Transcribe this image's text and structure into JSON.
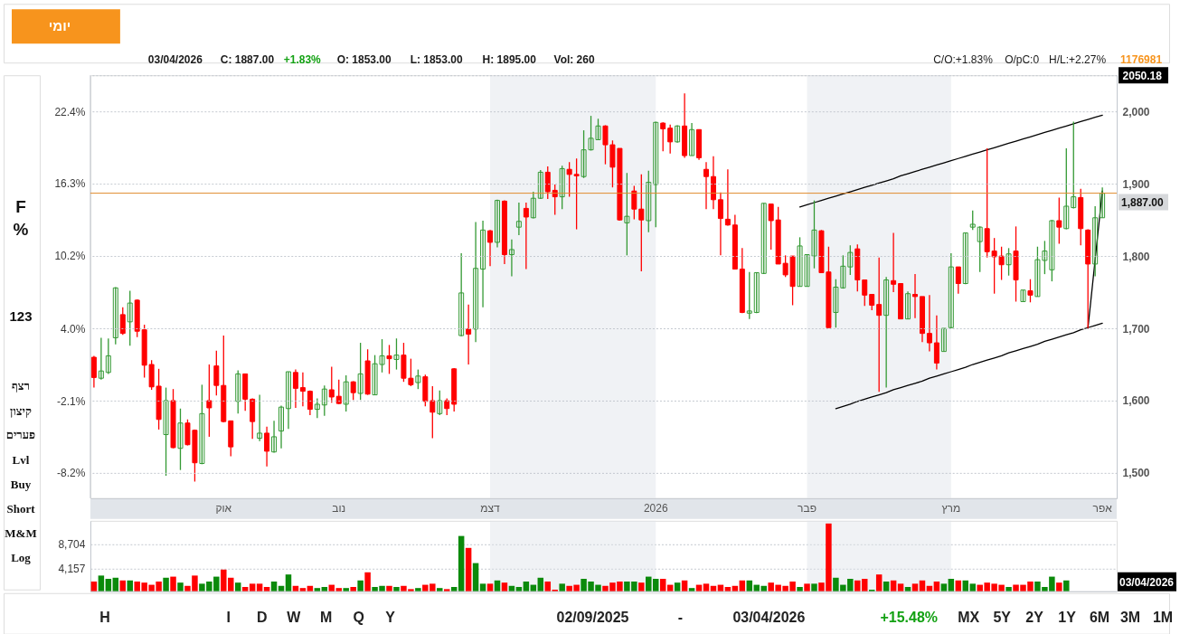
{
  "chart_data": [
    {
      "type": "candlestick",
      "title": "יומי",
      "categories": [
        null,
        null,
        null,
        null,
        null,
        null,
        null,
        null,
        null,
        null,
        null,
        null,
        null,
        null,
        null,
        null,
        null,
        null,
        "אוק",
        null,
        null,
        null,
        null,
        null,
        null,
        null,
        null,
        null,
        null,
        null,
        null,
        null,
        null,
        null,
        "נוב",
        null,
        null,
        null,
        null,
        null,
        null,
        null,
        null,
        null,
        null,
        null,
        null,
        null,
        null,
        null,
        null,
        null,
        null,
        null,
        null,
        "דצמ",
        null,
        null,
        null,
        null,
        null,
        null,
        null,
        null,
        null,
        null,
        null,
        null,
        null,
        null,
        null,
        null,
        null,
        null,
        null,
        null,
        null,
        null,
        "2026",
        null,
        null,
        null,
        null,
        null,
        null,
        null,
        null,
        null,
        null,
        null,
        null,
        null,
        null,
        null,
        null,
        null,
        null,
        null,
        null,
        "פבר",
        null,
        null,
        null,
        null,
        null,
        null,
        null,
        null,
        null,
        null,
        null,
        null,
        null,
        null,
        null,
        null,
        null,
        null,
        null,
        "מרץ",
        null,
        null,
        null,
        null,
        null,
        null,
        null,
        null,
        null,
        null,
        null,
        null,
        null,
        null,
        null,
        null,
        null,
        null,
        null,
        null,
        "אפר"
      ],
      "ohlc": [
        [
          1660,
          1662,
          1618,
          1632
        ],
        [
          1631,
          1687,
          1629,
          1641
        ],
        [
          1639,
          1686,
          1637,
          1662
        ],
        [
          1687,
          1757,
          1678,
          1756
        ],
        [
          1719,
          1729,
          1691,
          1693
        ],
        [
          1709,
          1752,
          1676,
          1735
        ],
        [
          1739,
          1740,
          1688,
          1696
        ],
        [
          1698,
          1705,
          1632,
          1649
        ],
        [
          1650,
          1656,
          1615,
          1619
        ],
        [
          1620,
          1644,
          1560,
          1574
        ],
        [
          1553,
          1618,
          1496,
          1600
        ],
        [
          1600,
          1616,
          1534,
          1535
        ],
        [
          1534,
          1589,
          1504,
          1569
        ],
        [
          1569,
          1574,
          1538,
          1539
        ],
        [
          1559,
          1560,
          1488,
          1514
        ],
        [
          1513,
          1622,
          1512,
          1582
        ],
        [
          1600,
          1650,
          1550,
          1590
        ],
        [
          1648,
          1669,
          1607,
          1621
        ],
        [
          1621,
          1690,
          1570,
          1571
        ],
        [
          1572,
          1572,
          1523,
          1536
        ],
        [
          1599,
          1642,
          1582,
          1637
        ],
        [
          1637,
          1637,
          1586,
          1602
        ],
        [
          1602,
          1603,
          1547,
          1571
        ],
        [
          1548,
          1608,
          1544,
          1555
        ],
        [
          1555,
          1564,
          1509,
          1530
        ],
        [
          1529,
          1572,
          1528,
          1550
        ],
        [
          1558,
          1593,
          1534,
          1591
        ],
        [
          1589,
          1640,
          1561,
          1640
        ],
        [
          1639,
          1643,
          1590,
          1617
        ],
        [
          1618,
          1639,
          1592,
          1613
        ],
        [
          1613,
          1614,
          1580,
          1588
        ],
        [
          1588,
          1603,
          1576,
          1595
        ],
        [
          1594,
          1621,
          1579,
          1616
        ],
        [
          1615,
          1647,
          1597,
          1605
        ],
        [
          1606,
          1629,
          1595,
          1596
        ],
        [
          1595,
          1635,
          1585,
          1626
        ],
        [
          1626,
          1627,
          1601,
          1611
        ],
        [
          1610,
          1680,
          1601,
          1637
        ],
        [
          1655,
          1671,
          1608,
          1609
        ],
        [
          1608,
          1663,
          1608,
          1651
        ],
        [
          1650,
          1685,
          1639,
          1662
        ],
        [
          1662,
          1677,
          1637,
          1658
        ],
        [
          1657,
          1686,
          1643,
          1663
        ],
        [
          1663,
          1680,
          1626,
          1631
        ],
        [
          1631,
          1658,
          1620,
          1622
        ],
        [
          1625,
          1643,
          1616,
          1634
        ],
        [
          1633,
          1636,
          1592,
          1599
        ],
        [
          1600,
          1620,
          1548,
          1584
        ],
        [
          1582,
          1614,
          1580,
          1600
        ],
        [
          1600,
          1603,
          1580,
          1589
        ],
        [
          1644,
          1645,
          1585,
          1595
        ],
        [
          1690,
          1804,
          1689,
          1749
        ],
        [
          1699,
          1733,
          1650,
          1692
        ],
        [
          1699,
          1847,
          1681,
          1783
        ],
        [
          1782,
          1849,
          1729,
          1836
        ],
        [
          1835,
          1836,
          1786,
          1819
        ],
        [
          1819,
          1878,
          1812,
          1877
        ],
        [
          1876,
          1877,
          1789,
          1802
        ],
        [
          1802,
          1823,
          1772,
          1809
        ],
        [
          1840,
          1874,
          1829,
          1848
        ],
        [
          1866,
          1874,
          1782,
          1854
        ],
        [
          1853,
          1889,
          1852,
          1880
        ],
        [
          1880,
          1919,
          1879,
          1916
        ],
        [
          1916,
          1924,
          1879,
          1889
        ],
        [
          1891,
          1899,
          1857,
          1882
        ],
        [
          1882,
          1925,
          1865,
          1921
        ],
        [
          1920,
          1930,
          1882,
          1913
        ],
        [
          1913,
          1935,
          1837,
          1911
        ],
        [
          1910,
          1974,
          1908,
          1947
        ],
        [
          1947,
          1994,
          1946,
          1963
        ],
        [
          1961,
          1990,
          1961,
          1980
        ],
        [
          1980,
          1981,
          1927,
          1954
        ],
        [
          1954,
          1960,
          1895,
          1923
        ],
        [
          1949,
          1949,
          1849,
          1850
        ],
        [
          1846,
          1915,
          1801,
          1855
        ],
        [
          1890,
          1897,
          1851,
          1865
        ],
        [
          1865,
          1913,
          1779,
          1850
        ],
        [
          1849,
          1918,
          1833,
          1902
        ],
        [
          1899,
          1986,
          1840,
          1985
        ],
        [
          1984,
          1985,
          1945,
          1976
        ],
        [
          1977,
          1982,
          1942,
          1958
        ],
        [
          1958,
          1981,
          1957,
          1980
        ],
        [
          1980,
          2025,
          1936,
          1939
        ],
        [
          1939,
          1984,
          1939,
          1975
        ],
        [
          1975,
          1975,
          1933,
          1936
        ],
        [
          1920,
          1930,
          1865,
          1910
        ],
        [
          1910,
          1938,
          1865,
          1878
        ],
        [
          1878,
          1888,
          1801,
          1852
        ],
        [
          1851,
          1920,
          1842,
          1843
        ],
        [
          1843,
          1857,
          1782,
          1782
        ],
        [
          1782,
          1811,
          1721,
          1722
        ],
        [
          1721,
          1778,
          1713,
          1724
        ],
        [
          1722,
          1777,
          1721,
          1777
        ],
        [
          1776,
          1873,
          1775,
          1873
        ],
        [
          1872,
          1872,
          1809,
          1849
        ],
        [
          1850,
          1868,
          1789,
          1789
        ],
        [
          1790,
          1801,
          1771,
          1774
        ],
        [
          1800,
          1800,
          1732,
          1758
        ],
        [
          1758,
          1826,
          1758,
          1814
        ],
        [
          1758,
          1802,
          1758,
          1802
        ],
        [
          1800,
          1877,
          1783,
          1836
        ],
        [
          1835,
          1836,
          1777,
          1777
        ],
        [
          1778,
          1813,
          1701,
          1701
        ],
        [
          1722,
          1768,
          1701,
          1757
        ],
        [
          1756,
          1801,
          1755,
          1786
        ],
        [
          1785,
          1815,
          1774,
          1805
        ],
        [
          1810,
          1816,
          1751,
          1767
        ],
        [
          1767,
          1767,
          1731,
          1746
        ],
        [
          1747,
          1747,
          1725,
          1732
        ],
        [
          1733,
          1798,
          1612,
          1718
        ],
        [
          1718,
          1771,
          1618,
          1767
        ],
        [
          1766,
          1832,
          1750,
          1761
        ],
        [
          1762,
          1762,
          1713,
          1713
        ],
        [
          1713,
          1751,
          1713,
          1748
        ],
        [
          1747,
          1775,
          1714,
          1744
        ],
        [
          1744,
          1744,
          1681,
          1693
        ],
        [
          1693,
          1746,
          1668,
          1680
        ],
        [
          1680,
          1718,
          1643,
          1652
        ],
        [
          1668,
          1700,
          1668,
          1700
        ],
        [
          1701,
          1804,
          1700,
          1785
        ],
        [
          1785,
          1785,
          1748,
          1762
        ],
        [
          1762,
          1832,
          1761,
          1832
        ],
        [
          1840,
          1863,
          1836,
          1844
        ],
        [
          1820,
          1841,
          1778,
          1840
        ],
        [
          1838,
          1949,
          1798,
          1806
        ],
        [
          1807,
          1825,
          1748,
          1799
        ],
        [
          1800,
          1813,
          1767,
          1788
        ],
        [
          1788,
          1811,
          1773,
          1803
        ],
        [
          1807,
          1841,
          1737,
          1767
        ],
        [
          1737,
          1753,
          1737,
          1753
        ],
        [
          1752,
          1768,
          1736,
          1746
        ],
        [
          1744,
          1813,
          1744,
          1795
        ],
        [
          1794,
          1821,
          1775,
          1807
        ],
        [
          1781,
          1850,
          1765,
          1849
        ],
        [
          1849,
          1881,
          1817,
          1840
        ],
        [
          1838,
          1949,
          1837,
          1869
        ],
        [
          1867,
          1986,
          1866,
          1882
        ],
        [
          1881,
          1893,
          1815,
          1838
        ],
        [
          1836,
          1837,
          1700,
          1789
        ],
        [
          1789,
          1869,
          1772,
          1853
        ],
        [
          1853,
          1895,
          1853,
          1887
        ]
      ],
      "colors": [
        "#ff0000",
        "#339933",
        "#339933",
        "#339933",
        "#ff0000",
        "#339933",
        "#ff0000",
        "#ff0000",
        "#ff0000",
        "#ff0000",
        "#339933",
        "#ff0000",
        "#339933",
        "#ff0000",
        "#ff0000",
        "#339933",
        "#ff0000",
        "#ff0000",
        "#ff0000",
        "#ff0000",
        "#339933",
        "#ff0000",
        "#ff0000",
        "#339933",
        "#ff0000",
        "#339933",
        "#339933",
        "#339933",
        "#ff0000",
        "#ff0000",
        "#ff0000",
        "#339933",
        "#339933",
        "#ff0000",
        "#ff0000",
        "#339933",
        "#ff0000",
        "#339933",
        "#ff0000",
        "#339933",
        "#339933",
        "#ff0000",
        "#339933",
        "#ff0000",
        "#ff0000",
        "#339933",
        "#ff0000",
        "#ff0000",
        "#339933",
        "#ff0000",
        "#ff0000",
        "#339933",
        "#ff0000",
        "#339933",
        "#339933",
        "#ff0000",
        "#339933",
        "#ff0000",
        "#339933",
        "#339933",
        "#ff0000",
        "#339933",
        "#339933",
        "#ff0000",
        "#ff0000",
        "#339933",
        "#ff0000",
        "#ff0000",
        "#339933",
        "#339933",
        "#339933",
        "#ff0000",
        "#ff0000",
        "#ff0000",
        "#339933",
        "#ff0000",
        "#ff0000",
        "#339933",
        "#339933",
        "#ff0000",
        "#ff0000",
        "#339933",
        "#ff0000",
        "#339933",
        "#ff0000",
        "#ff0000",
        "#ff0000",
        "#ff0000",
        "#ff0000",
        "#ff0000",
        "#ff0000",
        "#339933",
        "#339933",
        "#339933",
        "#ff0000",
        "#ff0000",
        "#ff0000",
        "#ff0000",
        "#339933",
        "#339933",
        "#339933",
        "#ff0000",
        "#ff0000",
        "#339933",
        "#339933",
        "#339933",
        "#ff0000",
        "#ff0000",
        "#ff0000",
        "#ff0000",
        "#339933",
        "#ff0000",
        "#ff0000",
        "#339933",
        "#ff0000",
        "#ff0000",
        "#ff0000",
        "#ff0000",
        "#339933",
        "#339933",
        "#ff0000",
        "#339933",
        "#339933",
        "#339933",
        "#ff0000",
        "#ff0000",
        "#ff0000",
        "#339933",
        "#ff0000",
        "#339933",
        "#ff0000",
        "#339933",
        "#339933",
        "#339933",
        "#ff0000",
        "#339933",
        "#339933",
        "#ff0000",
        "#ff0000",
        "#339933",
        "#339933"
      ],
      "series": [
        {
          "type": "line",
          "color": "#000000",
          "values": [
            null,
            null,
            null,
            null,
            null,
            null,
            null,
            null,
            null,
            null,
            null,
            null,
            null,
            null,
            null,
            null,
            null,
            null,
            null,
            null,
            null,
            null,
            null,
            null,
            null,
            null,
            null,
            null,
            null,
            null,
            null,
            null,
            null,
            null,
            null,
            null,
            null,
            null,
            null,
            null,
            null,
            null,
            null,
            null,
            null,
            null,
            null,
            null,
            null,
            null,
            null,
            null,
            null,
            null,
            null,
            null,
            null,
            null,
            null,
            null,
            null,
            null,
            null,
            null,
            null,
            null,
            null,
            null,
            null,
            null,
            null,
            null,
            null,
            null,
            null,
            null,
            null,
            null,
            null,
            null,
            null,
            null,
            null,
            null,
            null,
            null,
            null,
            null,
            null,
            null,
            null,
            null,
            null,
            null,
            null,
            null,
            null,
            null,
            1868,
            1871,
            1874,
            1877,
            1880,
            1883,
            1886,
            1889,
            1892,
            1895,
            1898,
            1901,
            1904,
            1907,
            1911,
            1914,
            1917,
            1920,
            1923,
            1926,
            1929,
            1932,
            1935,
            1938,
            1941,
            1944,
            1947,
            1950,
            1953,
            1956,
            1959,
            1962,
            1965,
            1968,
            1971,
            1974,
            1977,
            1980,
            1983,
            1986,
            1989,
            1992,
            1995
          ]
        },
        {
          "type": "line",
          "color": "#000000",
          "values": [
            null,
            null,
            null,
            null,
            null,
            null,
            null,
            null,
            null,
            null,
            null,
            null,
            null,
            null,
            null,
            null,
            null,
            null,
            null,
            null,
            null,
            null,
            null,
            null,
            null,
            null,
            null,
            null,
            null,
            null,
            null,
            null,
            null,
            null,
            null,
            null,
            null,
            null,
            null,
            null,
            null,
            null,
            null,
            null,
            null,
            null,
            null,
            null,
            null,
            null,
            null,
            null,
            null,
            null,
            null,
            null,
            null,
            null,
            null,
            null,
            null,
            null,
            null,
            null,
            null,
            null,
            null,
            null,
            null,
            null,
            null,
            null,
            null,
            null,
            null,
            null,
            null,
            null,
            null,
            null,
            null,
            null,
            null,
            null,
            null,
            null,
            null,
            null,
            null,
            null,
            null,
            null,
            null,
            null,
            null,
            null,
            null,
            null,
            null,
            null,
            null,
            null,
            null,
            1589,
            1592,
            1595,
            1599,
            1602,
            1605,
            1608,
            1611,
            1615,
            1618,
            1621,
            1624,
            1627,
            1631,
            1634,
            1637,
            1640,
            1643,
            1646,
            1650,
            1653,
            1656,
            1659,
            1662,
            1666,
            1669,
            1672,
            1675,
            1678,
            1682,
            1685,
            1688,
            1691,
            1694,
            1698,
            1701,
            1704,
            1707
          ]
        },
        {
          "type": "line",
          "color": "#000000",
          "values": [
            null,
            null,
            null,
            null,
            null,
            null,
            null,
            null,
            null,
            null,
            null,
            null,
            null,
            null,
            null,
            null,
            null,
            null,
            null,
            null,
            null,
            null,
            null,
            null,
            null,
            null,
            null,
            null,
            null,
            null,
            null,
            null,
            null,
            null,
            null,
            null,
            null,
            null,
            null,
            null,
            null,
            null,
            null,
            null,
            null,
            null,
            null,
            null,
            null,
            null,
            null,
            null,
            null,
            null,
            null,
            null,
            null,
            null,
            null,
            null,
            null,
            null,
            null,
            null,
            null,
            null,
            null,
            null,
            null,
            null,
            null,
            null,
            null,
            null,
            null,
            null,
            null,
            null,
            null,
            null,
            null,
            null,
            null,
            null,
            null,
            null,
            null,
            null,
            null,
            null,
            null,
            null,
            null,
            null,
            null,
            null,
            null,
            null,
            null,
            null,
            null,
            null,
            null,
            null,
            null,
            null,
            null,
            null,
            null,
            null,
            null,
            null,
            null,
            null,
            null,
            null,
            null,
            null,
            null,
            null,
            null,
            null,
            null,
            null,
            null,
            null,
            null,
            null,
            null,
            null,
            null,
            null,
            null,
            null,
            null,
            null,
            null,
            null,
            1700,
            1795,
            1890
          ]
        }
      ],
      "ylim": [
        1465,
        2050.18
      ],
      "yticks": [
        {
          "value": 1500,
          "label": "1,500"
        },
        {
          "value": 1600,
          "label": "1,600"
        },
        {
          "value": 1700,
          "label": "1,700"
        },
        {
          "value": 1800,
          "label": "1,800"
        },
        {
          "value": 1900,
          "label": "1,900"
        },
        {
          "value": 2000,
          "label": "2,000"
        },
        2050.18
      ],
      "y2lim": [
        -10.35,
        25.47
      ],
      "y2ticks": [
        {
          "value": -8.2,
          "label": "-8.2%"
        },
        {
          "value": -2.1,
          "label": "-2.1%"
        },
        {
          "value": 4.0,
          "label": "4.0%"
        },
        {
          "value": 10.2,
          "label": "10.2%"
        },
        {
          "value": 16.3,
          "label": "16.3%"
        },
        {
          "value": 22.4,
          "label": "22.4%"
        }
      ],
      "ref_lines": [
        {
          "axis": "y",
          "value": 1887,
          "label": "1,887.00",
          "color": "#e08a2c"
        }
      ],
      "bands": [
        {
          "axis": "x",
          "from": "דצמ",
          "to": "2026"
        },
        {
          "axis": "x",
          "from": "פבר",
          "to": "מרץ"
        }
      ],
      "grid": "y",
      "annotations": [
        "03/04/2026",
        "C: 1887.00",
        "+1.83%",
        "O: 1853.00",
        "L: 1853.00",
        "H: 1895.00",
        "Vol: 260",
        "C/O:+1.83%",
        "O/pC:0",
        "H/L:+2.27%",
        "1176981",
        "F",
        "%",
        "123",
        "רצף",
        "קיצון",
        "פערים",
        "Lvl",
        "Buy",
        "Short",
        "M&M",
        "Log",
        "H",
        "I",
        "D",
        "W",
        "M",
        "Q",
        "Y",
        "02/09/2025",
        "-",
        "03/04/2026",
        "+15.48%",
        "MX",
        "5Y",
        "2Y",
        "1Y",
        "6M",
        "3M",
        "1M"
      ]
    },
    {
      "type": "bar",
      "categories": [
        null,
        null,
        null,
        null,
        null,
        null,
        null,
        null,
        null,
        null,
        null,
        null,
        null,
        null,
        null,
        null,
        null,
        null,
        "אוק",
        null,
        null,
        null,
        null,
        null,
        null,
        null,
        null,
        null,
        null,
        null,
        null,
        null,
        null,
        null,
        "נוב",
        null,
        null,
        null,
        null,
        null,
        null,
        null,
        null,
        null,
        null,
        null,
        null,
        null,
        null,
        null,
        null,
        null,
        null,
        null,
        null,
        "דצמ",
        null,
        null,
        null,
        null,
        null,
        null,
        null,
        null,
        null,
        null,
        null,
        null,
        null,
        null,
        null,
        null,
        null,
        null,
        null,
        null,
        null,
        null,
        "2026",
        null,
        null,
        null,
        null,
        null,
        null,
        null,
        null,
        null,
        null,
        null,
        null,
        null,
        null,
        null,
        null,
        null,
        null,
        null,
        null,
        "פבר",
        null,
        null,
        null,
        null,
        null,
        null,
        null,
        null,
        null,
        null,
        null,
        null,
        null,
        null,
        null,
        null,
        null,
        null,
        null,
        "מרץ",
        null,
        null,
        null,
        null,
        null,
        null,
        null,
        null,
        null,
        null,
        null,
        null,
        null,
        null,
        null,
        null,
        null,
        null,
        null,
        null,
        "אפר"
      ],
      "values": [
        1800,
        2900,
        2300,
        2500,
        2000,
        2000,
        1800,
        1600,
        1200,
        1800,
        2500,
        2700,
        1600,
        1000,
        2900,
        1400,
        1800,
        2700,
        4000,
        2500,
        1600,
        800,
        1400,
        1400,
        800,
        1800,
        1000,
        3100,
        1000,
        600,
        1000,
        600,
        800,
        1200,
        600,
        600,
        800,
        2000,
        3500,
        800,
        1000,
        1000,
        800,
        1000,
        400,
        600,
        1200,
        1400,
        600,
        400,
        800,
        10200,
        8000,
        5200,
        1400,
        1400,
        2000,
        1600,
        1000,
        800,
        1800,
        1200,
        2500,
        1800,
        300,
        1400,
        1000,
        1200,
        2300,
        1800,
        1200,
        1000,
        1600,
        1800,
        1800,
        1800,
        1600,
        2700,
        2300,
        2300,
        1200,
        1600,
        2000,
        600,
        1200,
        1400,
        1000,
        1200,
        800,
        1000,
        2000,
        2000,
        1200,
        1000,
        1600,
        1200,
        1000,
        1800,
        800,
        1400,
        1400,
        1600,
        12500,
        2500,
        1200,
        2300,
        2000,
        2300,
        300,
        3100,
        1800,
        2000,
        1400,
        800,
        1400,
        2000,
        1000,
        1800,
        1400,
        2300,
        2000,
        2000,
        1400,
        1200,
        1600,
        1400,
        1200,
        800,
        1200,
        1200,
        1800,
        1800,
        800,
        2700,
        1600,
        2000,
        null,
        null,
        null,
        null,
        null
      ],
      "colors": [
        "#ff0000",
        "#0b8a0b",
        "#0b8a0b",
        "#0b8a0b",
        "#ff0000",
        "#0b8a0b",
        "#ff0000",
        "#ff0000",
        "#ff0000",
        "#ff0000",
        "#0b8a0b",
        "#ff0000",
        "#0b8a0b",
        "#ff0000",
        "#ff0000",
        "#0b8a0b",
        "#0b8a0b",
        "#0b8a0b",
        "#ff0000",
        "#ff0000",
        "#0b8a0b",
        "#ff0000",
        "#ff0000",
        "#ff0000",
        "#ff0000",
        "#0b8a0b",
        "#0b8a0b",
        "#0b8a0b",
        "#ff0000",
        "#ff0000",
        "#ff0000",
        "#0b8a0b",
        "#0b8a0b",
        "#ff0000",
        "#ff0000",
        "#0b8a0b",
        "#ff0000",
        "#0b8a0b",
        "#ff0000",
        "#0b8a0b",
        "#0b8a0b",
        "#ff0000",
        "#0b8a0b",
        "#ff0000",
        "#ff0000",
        "#0b8a0b",
        "#ff0000",
        "#ff0000",
        "#0b8a0b",
        "#ff0000",
        "#0b8a0b",
        "#0b8a0b",
        "#ff0000",
        "#0b8a0b",
        "#0b8a0b",
        "#ff0000",
        "#0b8a0b",
        "#ff0000",
        "#0b8a0b",
        "#0b8a0b",
        "#0b8a0b",
        "#0b8a0b",
        "#0b8a0b",
        "#ff0000",
        "#ff0000",
        "#0b8a0b",
        "#ff0000",
        "#ff0000",
        "#0b8a0b",
        "#0b8a0b",
        "#0b8a0b",
        "#ff0000",
        "#ff0000",
        "#ff0000",
        "#0b8a0b",
        "#0b8a0b",
        "#ff0000",
        "#0b8a0b",
        "#0b8a0b",
        "#ff0000",
        "#ff0000",
        "#0b8a0b",
        "#ff0000",
        "#0b8a0b",
        "#ff0000",
        "#ff0000",
        "#ff0000",
        "#ff0000",
        "#ff0000",
        "#ff0000",
        "#ff0000",
        "#0b8a0b",
        "#0b8a0b",
        "#0b8a0b",
        "#ff0000",
        "#ff0000",
        "#ff0000",
        "#ff0000",
        "#0b8a0b",
        "#ff0000",
        "#0b8a0b",
        "#ff0000",
        "#ff0000",
        "#0b8a0b",
        "#0b8a0b",
        "#0b8a0b",
        "#ff0000",
        "#ff0000",
        "#0b8a0b",
        "#ff0000",
        "#0b8a0b",
        "#ff0000",
        "#ff0000",
        "#0b8a0b",
        "#ff0000",
        "#ff0000",
        "#ff0000",
        "#ff0000",
        "#0b8a0b",
        "#0b8a0b",
        "#ff0000",
        "#0b8a0b",
        "#0b8a0b",
        "#ff0000",
        "#ff0000",
        "#ff0000",
        "#ff0000",
        "#0b8a0b",
        "#ff0000",
        "#ff0000",
        "#ff0000",
        "#0b8a0b",
        "#0b8a0b",
        "#0b8a0b",
        "#ff0000",
        "#0b8a0b",
        "#0b8a0b",
        "#ff0000",
        "#ff0000",
        "#0b8a0b",
        "#0b8a0b"
      ],
      "ylim": [
        0,
        13000
      ],
      "yticks": [
        {
          "value": 4157,
          "label": "4,157"
        },
        {
          "value": 8704,
          "label": "8,704"
        }
      ],
      "bands": [
        {
          "axis": "x",
          "from": "דצמ",
          "to": "2026"
        },
        {
          "axis": "x",
          "from": "פבר",
          "to": "מרץ"
        }
      ],
      "grid": "y",
      "tick_labels": "y",
      "annotations": [
        "03/04/2026"
      ]
    }
  ]
}
